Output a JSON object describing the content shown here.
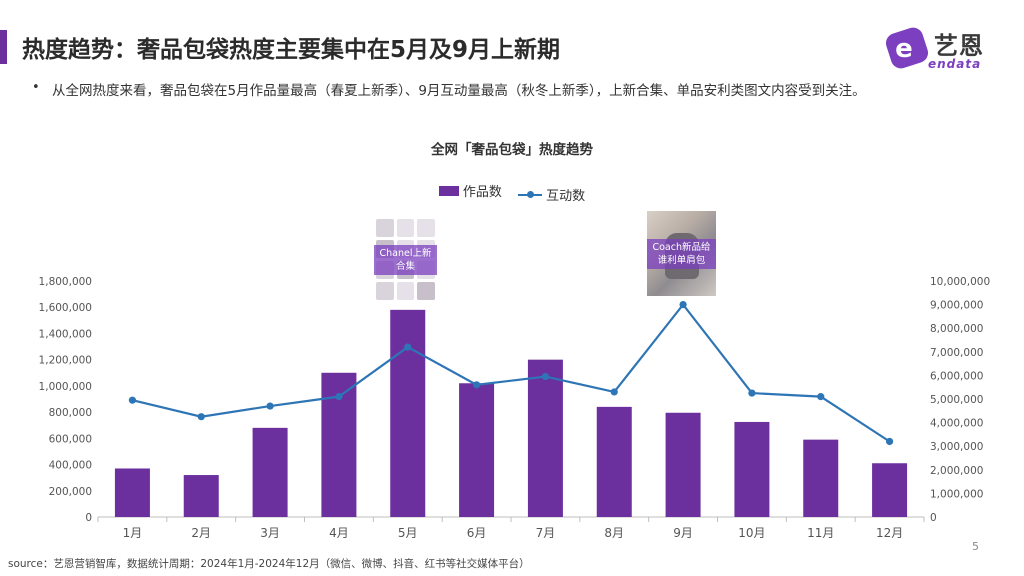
{
  "header": {
    "title": "热度趋势：奢品包袋热度主要集中在5月及9月上新期",
    "logo_cn": "艺恩",
    "logo_en": "endata",
    "logo_letter": "e"
  },
  "summary": {
    "bullet": "•",
    "text": "从全网热度来看，奢品包袋在5月作品量最高（春夏上新季）、9月互动量最高（秋冬上新季），上新合集、单品安利类图文内容受到关注。"
  },
  "annotations": {
    "may_label": "Chanel上新合集",
    "sep_label": "Coach新品给谁利单肩包"
  },
  "footer": {
    "source": "source：艺恩营销智库，数据统计周期：2024年1月-2024年12月（微信、微博、抖音、红书等社交媒体平台）",
    "page_number": "5"
  },
  "colors": {
    "bar": "#6b2f9e",
    "line": "#2e75b6",
    "grid": "#dcdcdc",
    "accent": "#6b2f9e"
  },
  "chart_data": {
    "type": "bar",
    "title": "全网「奢品包袋」热度趋势",
    "categories": [
      "1月",
      "2月",
      "3月",
      "4月",
      "5月",
      "6月",
      "7月",
      "8月",
      "9月",
      "10月",
      "11月",
      "12月"
    ],
    "series": [
      {
        "name": "作品数",
        "type": "bar",
        "axis": "left",
        "values": [
          370000,
          320000,
          680000,
          1100000,
          1580000,
          1020000,
          1200000,
          840000,
          795000,
          725000,
          590000,
          410000
        ]
      },
      {
        "name": "互动数",
        "type": "line",
        "axis": "right",
        "values": [
          4950000,
          4250000,
          4700000,
          5100000,
          7200000,
          5600000,
          5950000,
          5300000,
          9000000,
          5250000,
          5100000,
          3200000
        ]
      }
    ],
    "left_axis": {
      "ylim": [
        0,
        1800000
      ],
      "ticks": [
        "0",
        "200,000",
        "400,000",
        "600,000",
        "800,000",
        "1,000,000",
        "1,200,000",
        "1,400,000",
        "1,600,000",
        "1,800,000"
      ]
    },
    "right_axis": {
      "ylim": [
        0,
        10000000
      ],
      "ticks": [
        "0",
        "1,000,000",
        "2,000,000",
        "3,000,000",
        "4,000,000",
        "5,000,000",
        "6,000,000",
        "7,000,000",
        "8,000,000",
        "9,000,000",
        "10,000,000"
      ]
    },
    "grid": false,
    "legend": "top"
  }
}
